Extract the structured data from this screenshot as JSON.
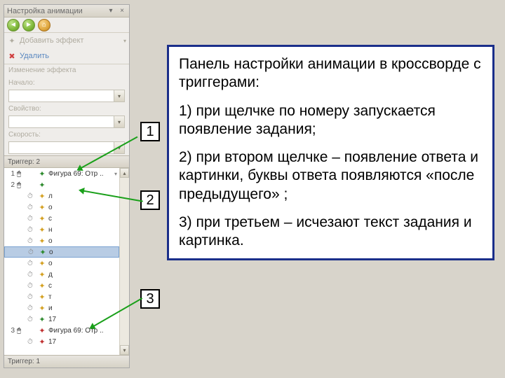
{
  "panel": {
    "title": "Настройка анимации",
    "add_effect": "Добавить эффект",
    "remove": "Удалить",
    "change_section": "Изменение эффекта",
    "start_label": "Начало:",
    "start_value": "",
    "property_label": "Свойство:",
    "property_value": "",
    "speed_label": "Скорость:",
    "speed_value": "",
    "trigger_header": "Триггер: 2",
    "bottom_header": "Триггер: 1",
    "rows": [
      {
        "num": "1",
        "trig": "👆",
        "star": "g",
        "label": "Фигура 69: Отр ..",
        "sel": false,
        "arrow": true
      },
      {
        "num": "2",
        "trig": "👆",
        "star": "g",
        "label": "",
        "sel": false
      },
      {
        "num": "",
        "trig": "",
        "star": "y",
        "label": "л",
        "sel": false,
        "after": true
      },
      {
        "num": "",
        "trig": "",
        "star": "y",
        "label": "о",
        "sel": false,
        "after": true
      },
      {
        "num": "",
        "trig": "",
        "star": "y",
        "label": "с",
        "sel": false,
        "after": true
      },
      {
        "num": "",
        "trig": "",
        "star": "y",
        "label": "н",
        "sel": false,
        "after": true
      },
      {
        "num": "",
        "trig": "",
        "star": "y",
        "label": "о",
        "sel": false,
        "after": true
      },
      {
        "num": "",
        "trig": "",
        "star": "g",
        "label": "о",
        "sel": true,
        "after": true
      },
      {
        "num": "",
        "trig": "",
        "star": "y",
        "label": "о",
        "sel": false,
        "after": true
      },
      {
        "num": "",
        "trig": "",
        "star": "y",
        "label": "д",
        "sel": false,
        "after": true
      },
      {
        "num": "",
        "trig": "",
        "star": "y",
        "label": "с",
        "sel": false,
        "after": true
      },
      {
        "num": "",
        "trig": "",
        "star": "y",
        "label": "т",
        "sel": false,
        "after": true
      },
      {
        "num": "",
        "trig": "",
        "star": "y",
        "label": "и",
        "sel": false,
        "after": true
      },
      {
        "num": "",
        "trig": "",
        "star": "g",
        "label": "17",
        "sel": false,
        "after": true
      },
      {
        "num": "3",
        "trig": "👆",
        "star": "r",
        "label": "Фигура 69: Отр ..",
        "sel": false
      },
      {
        "num": "",
        "trig": "",
        "star": "r",
        "label": "17",
        "sel": false,
        "after": true
      }
    ]
  },
  "info": {
    "heading": "Панель настройки анимации в кроссворде с триггерами:",
    "p1": "1) при щелчке по номеру запускается появление задания;",
    "p2": "2) при втором щелчке – появление ответа и картинки, буквы ответа появляются «после предыдущего» ;",
    "p3": "3) при третьем – исчезают текст задания и картинка."
  },
  "callouts": {
    "c1": "1",
    "c2": "2",
    "c3": "3"
  },
  "colors": {
    "info_border": "#1a2e8a",
    "arrow": "#1aa01a"
  }
}
